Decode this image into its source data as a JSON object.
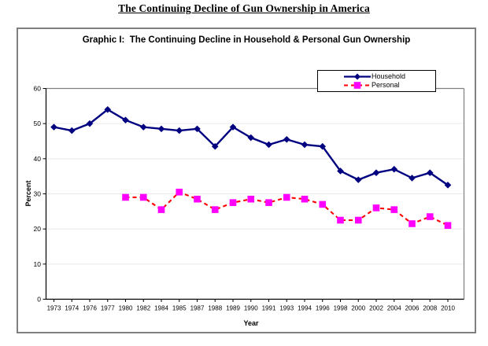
{
  "page_title": "The Continuing Decline of Gun Ownership in America",
  "graphic_title": "Graphic I:  The Continuing Decline in Household & Personal Gun Ownership",
  "colors": {
    "household": "#000080",
    "personal_marker": "#FF00FF",
    "personal_line": "#FF0000",
    "box_border": "#7F7F7F",
    "plot_border_gray": "#808080",
    "axis_black": "#000000",
    "gridline": "#E9E9E9"
  },
  "chart_data": {
    "type": "line",
    "title": "Graphic I:  The Continuing Decline in Household & Personal Gun Ownership",
    "xlabel": "Year",
    "ylabel": "Percent",
    "ylim": [
      0,
      60
    ],
    "yticks": [
      0,
      10,
      20,
      30,
      40,
      50,
      60
    ],
    "grid": true,
    "legend_position": "top-right",
    "categories": [
      "1973",
      "1974",
      "1976",
      "1977",
      "1980",
      "1982",
      "1984",
      "1985",
      "1987",
      "1988",
      "1989",
      "1990",
      "1991",
      "1993",
      "1994",
      "1996",
      "1998",
      "2000",
      "2002",
      "2004",
      "2006",
      "2008",
      "2010"
    ],
    "series": [
      {
        "name": "Household",
        "color": "#000080",
        "line_color": "#000080",
        "line_style": "solid",
        "marker": "diamond",
        "values": [
          49,
          48,
          50,
          54,
          51,
          49,
          48.5,
          48,
          48.5,
          43.5,
          49,
          46,
          44,
          45.5,
          44,
          43.5,
          36.5,
          34,
          36,
          37,
          34.5,
          36,
          32.5
        ]
      },
      {
        "name": "Personal",
        "color": "#FF00FF",
        "line_color": "#FF0000",
        "line_style": "dashed",
        "marker": "square",
        "values": [
          null,
          null,
          null,
          null,
          29,
          29,
          25.5,
          30.5,
          28.5,
          25.5,
          27.5,
          28.5,
          27.5,
          29,
          28.5,
          27,
          22.5,
          22.5,
          26,
          25.5,
          21.5,
          23.5,
          21
        ]
      }
    ]
  }
}
